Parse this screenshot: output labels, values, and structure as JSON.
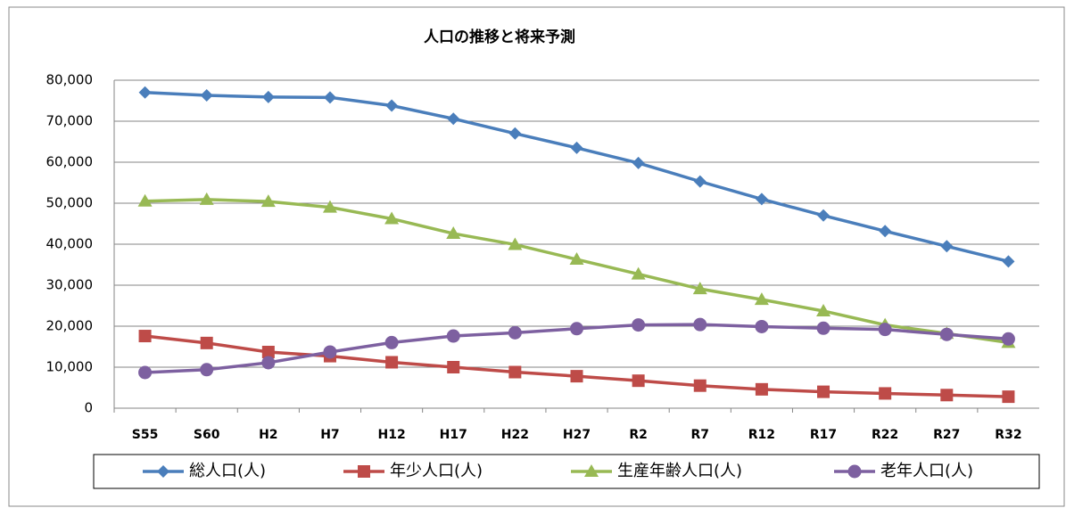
{
  "chart_data": {
    "type": "line",
    "title": "人口の推移と将来予測",
    "categories": [
      "S55",
      "S60",
      "H2",
      "H7",
      "H12",
      "H17",
      "H22",
      "H27",
      "R2",
      "R7",
      "R12",
      "R17",
      "R22",
      "R27",
      "R32"
    ],
    "series": [
      {
        "name": "総人口(人)",
        "color": "#4a7ebb",
        "marker": "diamond",
        "values": [
          77000,
          76300,
          75900,
          75800,
          73800,
          70600,
          67000,
          63500,
          59800,
          55300,
          51000,
          47000,
          43200,
          39500,
          35800
        ]
      },
      {
        "name": "年少人口(人)",
        "color": "#be4b48",
        "marker": "square",
        "values": [
          17600,
          15900,
          13700,
          12700,
          11200,
          10000,
          8800,
          7800,
          6700,
          5500,
          4600,
          4000,
          3600,
          3200,
          2800
        ]
      },
      {
        "name": "生産年齢人口(人)",
        "color": "#98b954",
        "marker": "triangle",
        "values": [
          50500,
          50900,
          50400,
          49000,
          46200,
          42600,
          39900,
          36300,
          32700,
          29100,
          26500,
          23700,
          20300,
          18200,
          16000
        ]
      },
      {
        "name": "老年人口(人)",
        "color": "#7d60a0",
        "marker": "circle",
        "values": [
          8700,
          9400,
          11100,
          13700,
          16000,
          17600,
          18400,
          19400,
          20300,
          20400,
          19900,
          19500,
          19200,
          18000,
          16900
        ]
      }
    ],
    "ylim": [
      0,
      80000
    ],
    "yticks": [
      0,
      {
        "value": 10000,
        "label": "10,000"
      },
      {
        "value": 20000,
        "label": "20,000"
      },
      {
        "value": 30000,
        "label": "30,000"
      },
      {
        "value": 40000,
        "label": "40,000"
      },
      {
        "value": 50000,
        "label": "50,000"
      },
      {
        "value": 60000,
        "label": "60,000"
      },
      {
        "value": 70000,
        "label": "70,000"
      },
      {
        "value": 80000,
        "label": "80,000"
      }
    ],
    "grid": true,
    "legend": "bottom"
  }
}
